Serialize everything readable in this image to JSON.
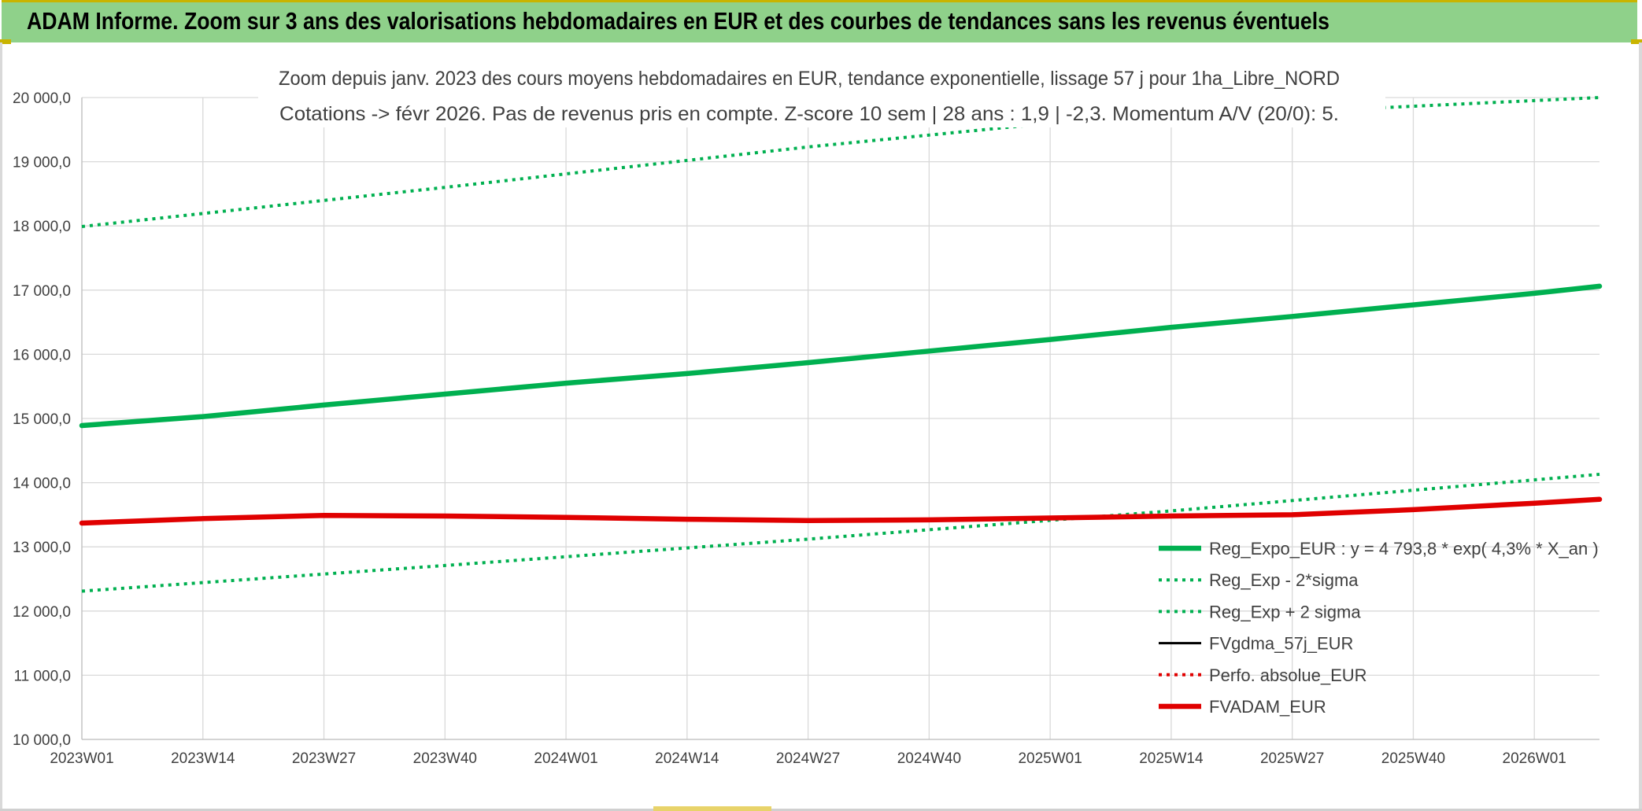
{
  "header": {
    "title": "ADAM Informe. Zoom sur 3 ans des valorisations hebdomadaires en EUR et des courbes de tendances sans les revenus éventuels"
  },
  "chart_data": {
    "type": "line",
    "subtitle_line1": "Zoom depuis janv. 2023 des cours moyens hebdomadaires en EUR, tendance exponentielle, lissage 57 j pour 1ha_Libre_NORD",
    "subtitle_line2": "Cotations -> févr 2026. Pas de revenus pris en compte. Z-score 10 sem | 28 ans : 1,9 | -2,3. Momentum A/V (20/0): 5.",
    "xlabel": "",
    "ylabel": "",
    "ylim": [
      10000,
      20000
    ],
    "xlim": [
      1,
      164
    ],
    "y_ticks": [
      10000,
      11000,
      12000,
      13000,
      14000,
      15000,
      16000,
      17000,
      18000,
      19000,
      20000
    ],
    "y_tick_labels": [
      "10 000,0",
      "11 000,0",
      "12 000,0",
      "13 000,0",
      "14 000,0",
      "15 000,0",
      "16 000,0",
      "17 000,0",
      "18 000,0",
      "19 000,0",
      "20 000,0"
    ],
    "x_ticks": [
      1,
      14,
      27,
      40,
      53,
      66,
      79,
      92,
      105,
      118,
      131,
      144,
      157
    ],
    "x_tick_labels": [
      "2023W01",
      "2023W14",
      "2023W27",
      "2023W40",
      "2024W01",
      "2024W14",
      "2024W27",
      "2024W40",
      "2025W01",
      "2025W14",
      "2025W27",
      "2025W40",
      "2026W01"
    ],
    "grid": true,
    "legend_position": "bottom-right",
    "series": [
      {
        "name": "Reg_Expo_EUR : y = 4 793,8 * exp( 4,3% *  X_an )",
        "color": "#00b050",
        "style": "solid-thick",
        "x": [
          1,
          14,
          27,
          40,
          53,
          66,
          79,
          92,
          105,
          118,
          131,
          144,
          157,
          164
        ],
        "y": [
          14890,
          15030,
          15210,
          15380,
          15550,
          15700,
          15870,
          16050,
          16230,
          16420,
          16590,
          16770,
          16950,
          17060
        ]
      },
      {
        "name": "Reg_Exp - 2*sigma",
        "color": "#00b050",
        "style": "dotted",
        "x": [
          1,
          40,
          79,
          118,
          164
        ],
        "y": [
          12310,
          12710,
          13120,
          13560,
          14130
        ]
      },
      {
        "name": "Reg_Exp + 2 sigma",
        "color": "#00b050",
        "style": "dotted",
        "x": [
          1,
          40,
          79,
          105,
          164
        ],
        "y": [
          17990,
          18600,
          19230,
          19600,
          20000
        ]
      },
      {
        "name": "FVgdma_57j_EUR",
        "color": "#000000",
        "style": "solid",
        "x": [],
        "y": []
      },
      {
        "name": "Perfo. absolue_EUR",
        "color": "#e00000",
        "style": "dotted",
        "x": [],
        "y": []
      },
      {
        "name": "FVADAM_EUR",
        "color": "#e00000",
        "style": "solid-thick",
        "x": [
          1,
          14,
          27,
          40,
          53,
          66,
          79,
          92,
          105,
          118,
          131,
          144,
          157,
          164
        ],
        "y": [
          13370,
          13440,
          13490,
          13480,
          13460,
          13430,
          13410,
          13420,
          13450,
          13480,
          13500,
          13580,
          13680,
          13740
        ]
      }
    ]
  }
}
